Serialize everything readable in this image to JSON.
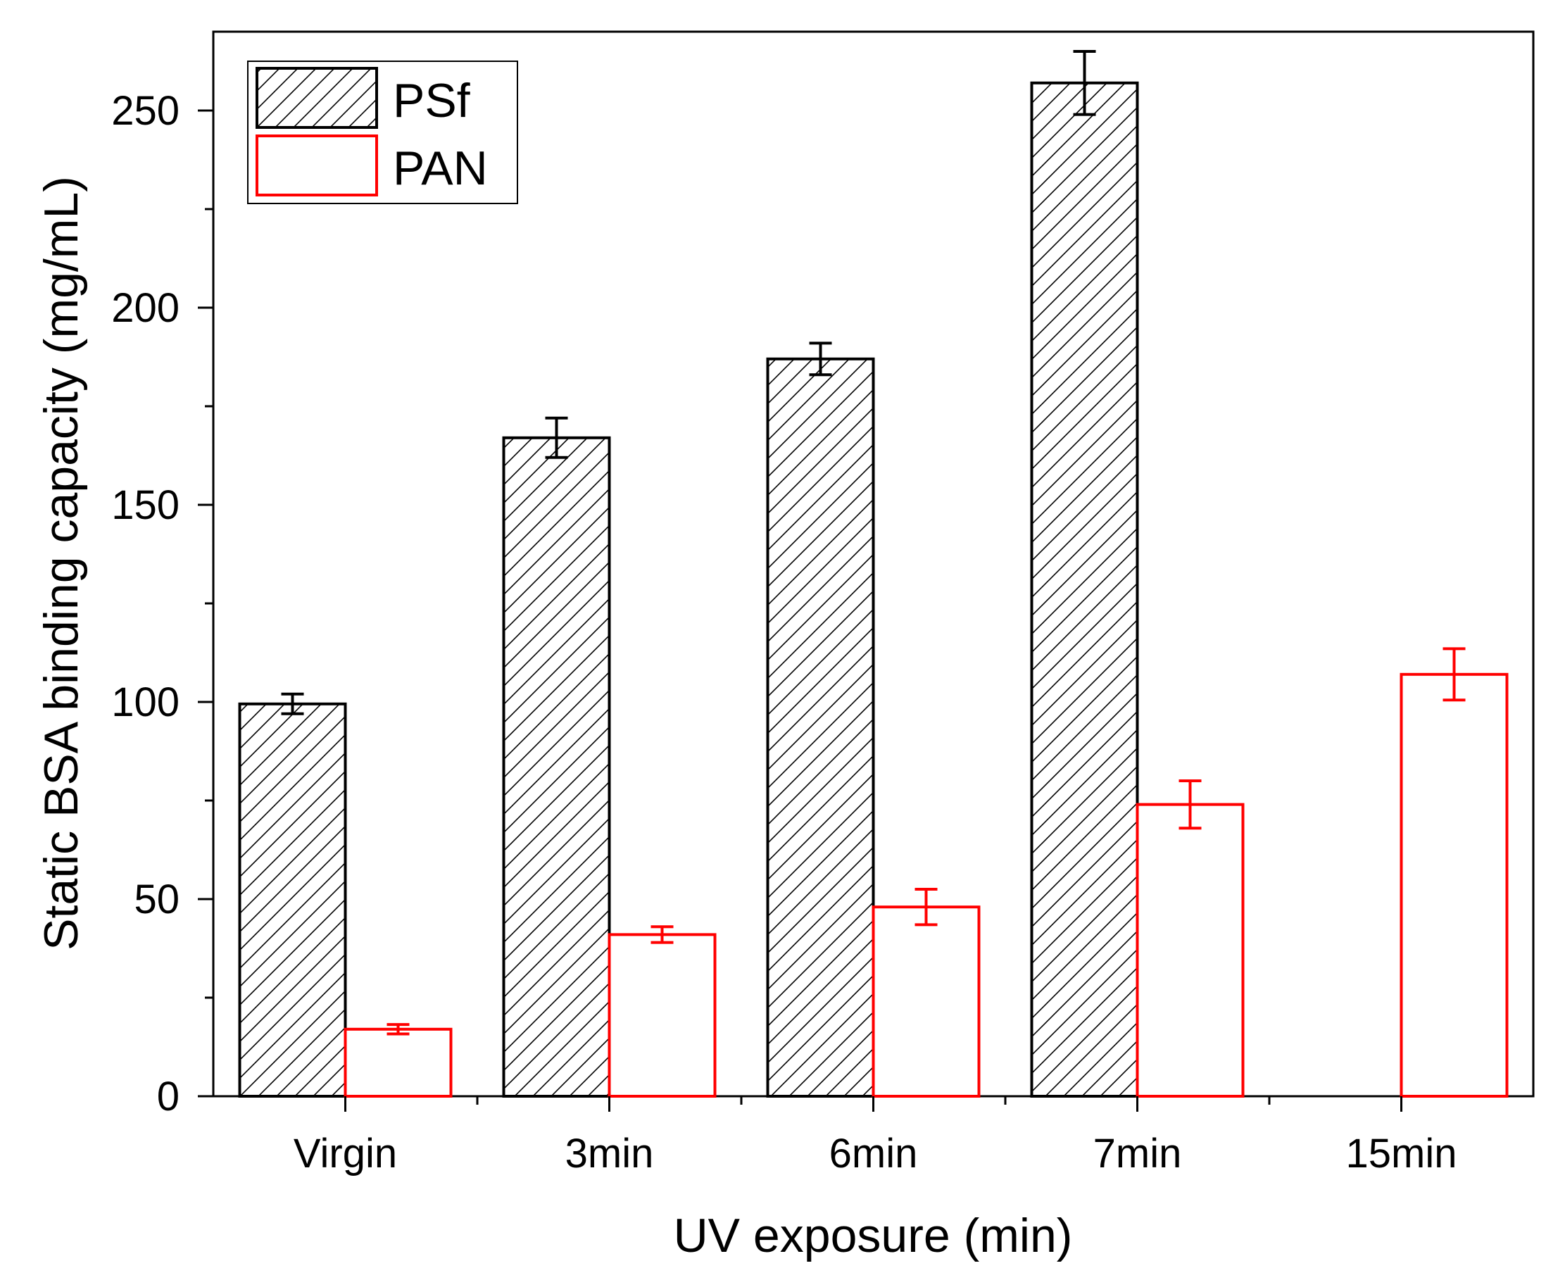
{
  "chart_data": {
    "type": "bar",
    "title": "",
    "xlabel": "UV exposure (min)",
    "ylabel": "Static BSA binding capacity (mg/mL)",
    "categories": [
      "Virgin",
      "3min",
      "6min",
      "7min",
      "15min"
    ],
    "ylim": [
      0,
      270
    ],
    "yticks": [
      0,
      50,
      100,
      150,
      200,
      250
    ],
    "yminor_step": 25,
    "grid": false,
    "legend_position": "top-left",
    "series": [
      {
        "name": "PSf",
        "style": "hatched",
        "edge_color": "#000000",
        "values": [
          99.5,
          167,
          187,
          257,
          null
        ],
        "errors": [
          2.5,
          5,
          4,
          8,
          null
        ]
      },
      {
        "name": "PAN",
        "style": "outline",
        "edge_color": "#ff0000",
        "values": [
          17,
          41,
          48,
          74,
          107
        ],
        "errors": [
          1.2,
          2,
          4.5,
          6,
          6.5
        ]
      }
    ]
  }
}
